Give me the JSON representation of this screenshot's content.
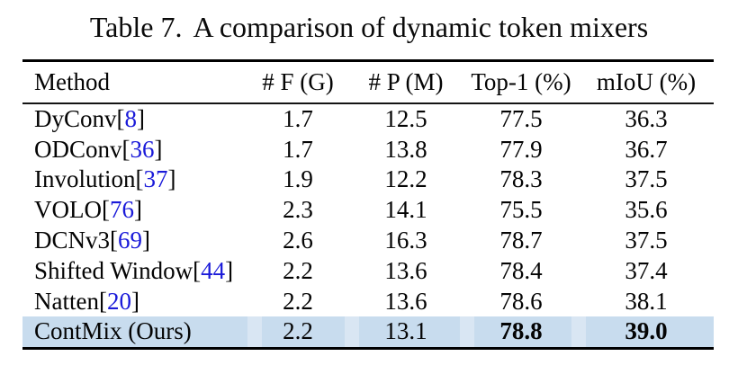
{
  "caption": {
    "label": "Table 7.",
    "text": "A comparison of dynamic token mixers"
  },
  "columns": [
    "Method",
    "# F (G)",
    "# P (M)",
    "Top-1 (%)",
    "mIoU (%)"
  ],
  "cite": {
    "open": "[",
    "close": "]"
  },
  "rows": [
    {
      "name": "DyConv",
      "cite": "8",
      "f": "1.7",
      "p": "12.5",
      "top1": "77.5",
      "miou": "36.3",
      "highlight": false
    },
    {
      "name": "ODConv",
      "cite": "36",
      "f": "1.7",
      "p": "13.8",
      "top1": "77.9",
      "miou": "36.7",
      "highlight": false
    },
    {
      "name": "Involution",
      "cite": "37",
      "f": "1.9",
      "p": "12.2",
      "top1": "78.3",
      "miou": "37.5",
      "highlight": false
    },
    {
      "name": "VOLO",
      "cite": "76",
      "f": "2.3",
      "p": "14.1",
      "top1": "75.5",
      "miou": "35.6",
      "highlight": false
    },
    {
      "name": "DCNv3",
      "cite": "69",
      "f": "2.6",
      "p": "16.3",
      "top1": "78.7",
      "miou": "37.5",
      "highlight": false
    },
    {
      "name": "Shifted Window",
      "cite": "44",
      "f": "2.2",
      "p": "13.6",
      "top1": "78.4",
      "miou": "37.4",
      "highlight": false
    },
    {
      "name": "Natten",
      "cite": "20",
      "f": "2.2",
      "p": "13.6",
      "top1": "78.6",
      "miou": "38.1",
      "highlight": false
    },
    {
      "name": "ContMix (Ours)",
      "cite": null,
      "f": "2.2",
      "p": "13.1",
      "top1": "78.8",
      "miou": "39.0",
      "highlight": true
    }
  ],
  "colors": {
    "highlight_row": "#c8dcee",
    "highlight_gap": "#d9e6f3",
    "citation_link": "#1a1ad9",
    "rule": "#000000",
    "text": "#040404",
    "background": "#ffffff"
  }
}
